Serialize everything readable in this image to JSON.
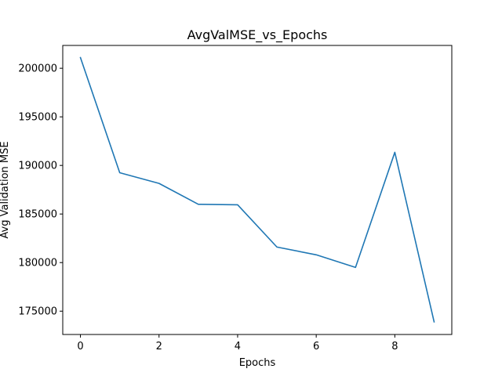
{
  "chart_data": {
    "type": "line",
    "title": "AvgValMSE_vs_Epochs",
    "xlabel": "Epochs",
    "ylabel": "Avg Validation MSE",
    "x": [
      0,
      1,
      2,
      3,
      4,
      5,
      6,
      7,
      8,
      9
    ],
    "series": [
      {
        "values": [
          201100,
          189250,
          188150,
          186000,
          185950,
          181600,
          180800,
          179500,
          191350,
          173900
        ],
        "color": "#1f77b4"
      }
    ],
    "xlim": [
      -0.45,
      9.45
    ],
    "ylim": [
      172600,
      202350
    ],
    "xticks": [
      0,
      2,
      4,
      6,
      8
    ],
    "xtick_labels": [
      "0",
      "2",
      "4",
      "6",
      "8"
    ],
    "yticks": [
      175000,
      180000,
      185000,
      190000,
      195000,
      200000
    ],
    "ytick_labels": [
      "175000",
      "180000",
      "185000",
      "190000",
      "195000",
      "200000"
    ],
    "grid": false,
    "legend": "none"
  }
}
